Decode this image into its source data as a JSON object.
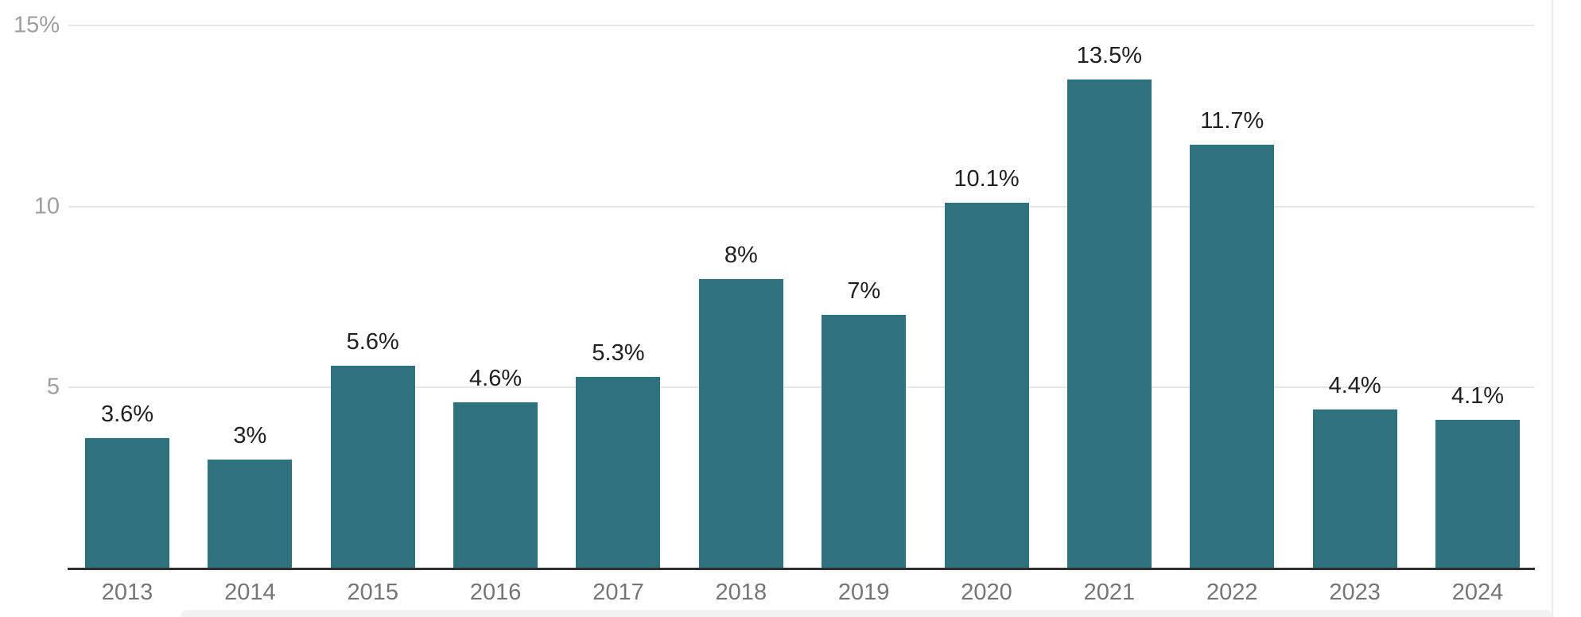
{
  "chart_data": {
    "type": "bar",
    "title": "",
    "xlabel": "",
    "ylabel": "",
    "categories": [
      "2013",
      "2014",
      "2015",
      "2016",
      "2017",
      "2018",
      "2019",
      "2020",
      "2021",
      "2022",
      "2023",
      "2024"
    ],
    "values": [
      3.6,
      3,
      5.6,
      4.6,
      5.3,
      8,
      7,
      10.1,
      13.5,
      11.7,
      4.4,
      4.1
    ],
    "value_labels": [
      "3.6%",
      "3%",
      "5.6%",
      "4.6%",
      "5.3%",
      "8%",
      "7%",
      "10.1%",
      "13.5%",
      "11.7%",
      "4.4%",
      "4.1%"
    ],
    "ylim": [
      0,
      15
    ],
    "yticks": [
      {
        "value": 15,
        "label": "15%"
      },
      {
        "value": 10,
        "label": "10"
      },
      {
        "value": 5,
        "label": "5"
      }
    ],
    "grid": true,
    "legend": false,
    "colors": {
      "bar": "#2f717d",
      "value_label": "#212121",
      "y_tick_label": "#9e9e9e",
      "x_tick_label": "#757575",
      "gridline": "#e6e6e6",
      "axis_line": "#2f2f2f",
      "background": "#ffffff"
    }
  }
}
